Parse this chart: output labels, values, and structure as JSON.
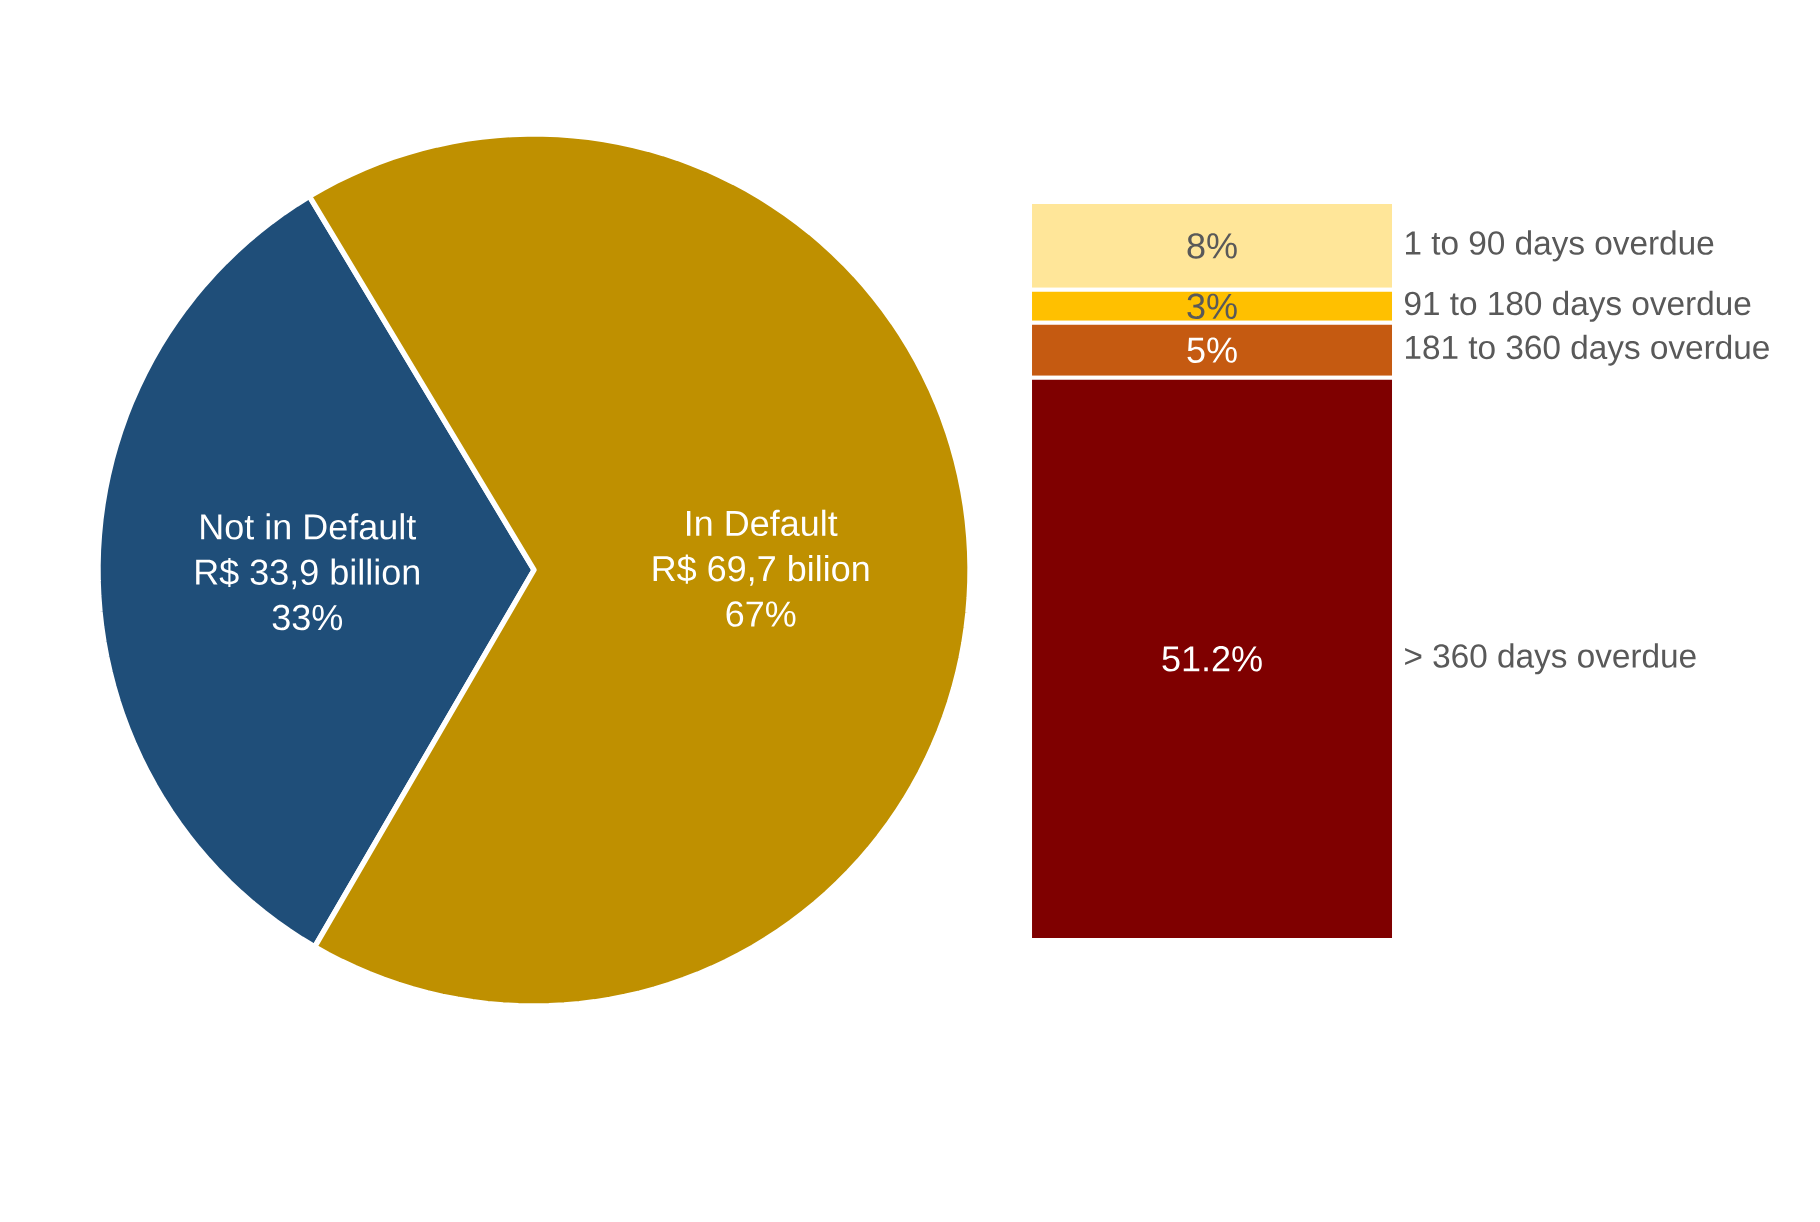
{
  "chart_data": [
    {
      "type": "pie",
      "categories": [
        "Not in Default",
        "In Default"
      ],
      "values": [
        33,
        67
      ],
      "colors": [
        "#1f4e79",
        "#bf9000"
      ],
      "value_labels": [
        "33%",
        "67%"
      ],
      "annotations": [
        {
          "text": "R$ 33,9 billion",
          "x": "Not in Default"
        },
        {
          "text": "R$ 69,7 bilion",
          "x": "In Default"
        }
      ]
    },
    {
      "type": "bar",
      "stacked": true,
      "categories": [
        null
      ],
      "series": [
        {
          "name": "> 360 days overdue",
          "color": "#7f0000",
          "values": [
            51.2
          ],
          "value_labels": [
            "51.2%"
          ]
        },
        {
          "name": "181 to 360 days overdue",
          "color": "#c55a11",
          "values": [
            5
          ],
          "value_labels": [
            "5%"
          ]
        },
        {
          "name": "91 to 180 days overdue",
          "color": "#ffc000",
          "values": [
            3
          ],
          "value_labels": [
            "3%"
          ]
        },
        {
          "name": "1 to 90 days overdue",
          "color": "#ffe699",
          "values": [
            8
          ],
          "value_labels": [
            "8%"
          ]
        }
      ]
    }
  ]
}
